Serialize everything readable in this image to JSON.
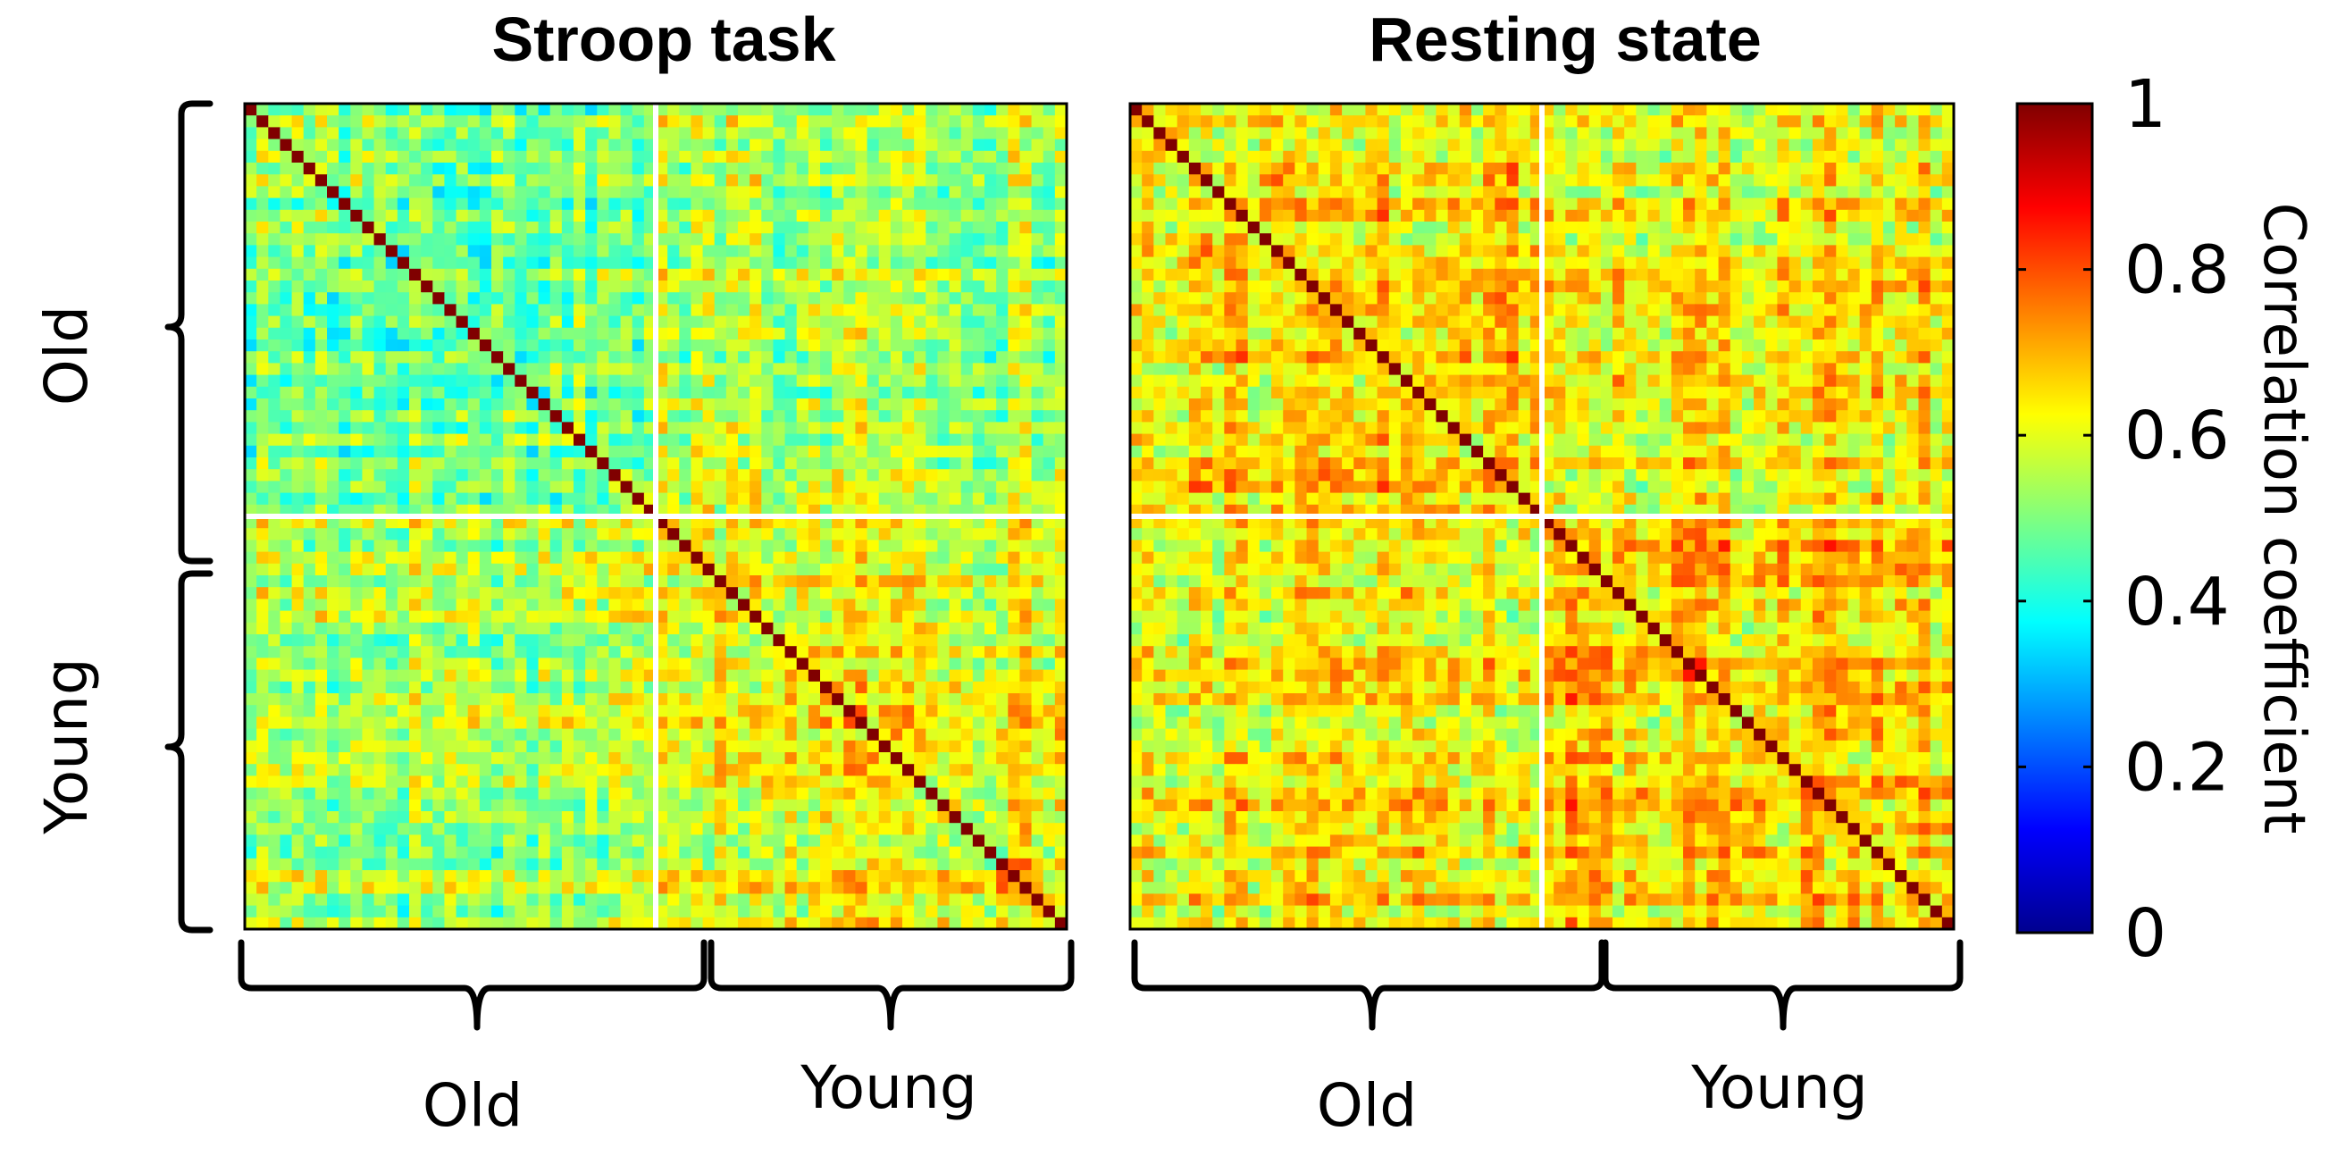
{
  "chart_data": [
    {
      "type": "heatmap",
      "title": "Stroop task",
      "n_old": 35,
      "n_young": 35,
      "row_groups": [
        "Old",
        "Young"
      ],
      "col_groups": [
        "Old",
        "Young"
      ],
      "diagonal_value": 1,
      "mean_values": {
        "old_old": 0.5,
        "young_young": 0.64,
        "old_young": 0.55
      },
      "value_range": [
        0,
        1
      ]
    },
    {
      "type": "heatmap",
      "title": "Resting state",
      "n_old": 35,
      "n_young": 35,
      "row_groups": [
        "Old",
        "Young"
      ],
      "col_groups": [
        "Old",
        "Young"
      ],
      "diagonal_value": 1,
      "mean_values": {
        "old_old": 0.66,
        "young_young": 0.67,
        "old_young": 0.64
      },
      "value_range": [
        0,
        1
      ]
    }
  ],
  "colorbar": {
    "label": "Correlation coefficient",
    "ticks": [
      "0",
      "0.2",
      "0.4",
      "0.6",
      "0.8",
      "1"
    ],
    "min": 0,
    "max": 1,
    "colormap": "jet"
  }
}
